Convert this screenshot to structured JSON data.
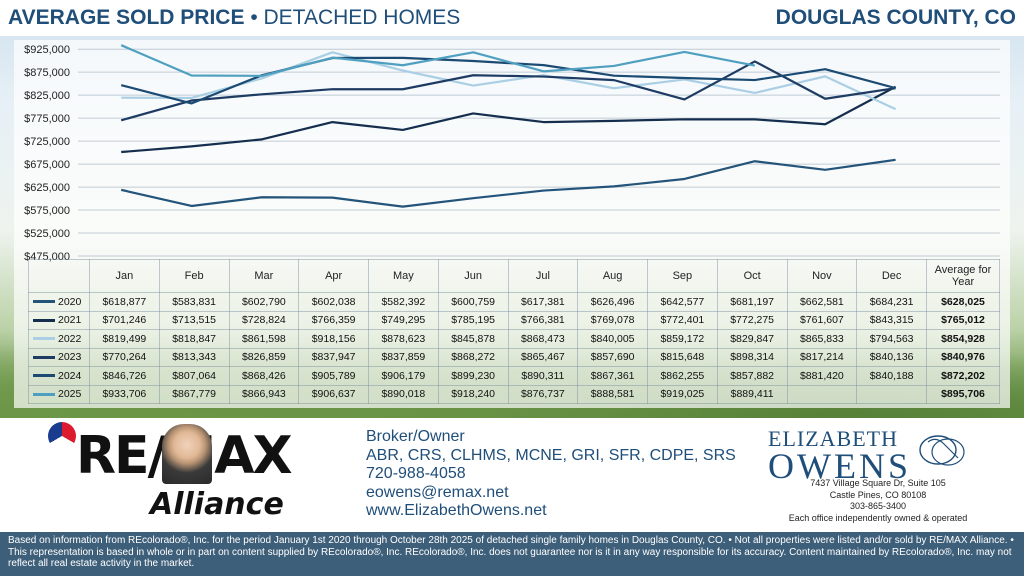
{
  "header": {
    "title_bold": "AVERAGE SOLD PRICE",
    "title_rest": " • DETACHED HOMES",
    "region": "DOUGLAS COUNTY, CO"
  },
  "colors": {
    "2020": "#24547a",
    "2021": "#152e4e",
    "2022": "#aacfe4",
    "2023": "#1e3b63",
    "2024": "#1b4a72",
    "2025": "#4fa0c0"
  },
  "chart_data": {
    "type": "line",
    "categories": [
      "Jan",
      "Feb",
      "Mar",
      "Apr",
      "May",
      "Jun",
      "Jul",
      "Aug",
      "Sep",
      "Oct",
      "Nov",
      "Dec"
    ],
    "ylim": [
      475000,
      945000
    ],
    "yticks": [
      "$475,000",
      "$525,000",
      "$575,000",
      "$625,000",
      "$675,000",
      "$725,000",
      "$775,000",
      "$825,000",
      "$875,000",
      "$925,000"
    ],
    "ytick_values": [
      475000,
      525000,
      575000,
      625000,
      675000,
      725000,
      775000,
      825000,
      875000,
      925000
    ],
    "avg_header": "Average for Year",
    "series": [
      {
        "name": "2020",
        "values": [
          618877,
          583831,
          602790,
          602038,
          582392,
          600759,
          617381,
          626496,
          642577,
          681197,
          662581,
          684231
        ],
        "display": [
          "$618,877",
          "$583,831",
          "$602,790",
          "$602,038",
          "$582,392",
          "$600,759",
          "$617,381",
          "$626,496",
          "$642,577",
          "$681,197",
          "$662,581",
          "$684,231"
        ],
        "average": "$628,025"
      },
      {
        "name": "2021",
        "values": [
          701246,
          713515,
          728824,
          766359,
          749295,
          785195,
          766381,
          769078,
          772401,
          772275,
          761607,
          843315
        ],
        "display": [
          "$701,246",
          "$713,515",
          "$728,824",
          "$766,359",
          "$749,295",
          "$785,195",
          "$766,381",
          "$769,078",
          "$772,401",
          "$772,275",
          "$761,607",
          "$843,315"
        ],
        "average": "$765,012"
      },
      {
        "name": "2022",
        "values": [
          819499,
          818847,
          861598,
          918156,
          878623,
          845878,
          868473,
          840005,
          859172,
          829847,
          865833,
          794563
        ],
        "display": [
          "$819,499",
          "$818,847",
          "$861,598",
          "$918,156",
          "$878,623",
          "$845,878",
          "$868,473",
          "$840,005",
          "$859,172",
          "$829,847",
          "$865,833",
          "$794,563"
        ],
        "average": "$854,928"
      },
      {
        "name": "2023",
        "values": [
          770264,
          813343,
          826859,
          837947,
          837859,
          868272,
          865467,
          857690,
          815648,
          898314,
          817214,
          840136
        ],
        "display": [
          "$770,264",
          "$813,343",
          "$826,859",
          "$837,947",
          "$837,859",
          "$868,272",
          "$865,467",
          "$857,690",
          "$815,648",
          "$898,314",
          "$817,214",
          "$840,136"
        ],
        "average": "$840,976"
      },
      {
        "name": "2024",
        "values": [
          846726,
          807064,
          868426,
          905789,
          906179,
          899230,
          890311,
          867361,
          862255,
          857882,
          881420,
          840188
        ],
        "display": [
          "$846,726",
          "$807,064",
          "$868,426",
          "$905,789",
          "$906,179",
          "$899,230",
          "$890,311",
          "$867,361",
          "$862,255",
          "$857,882",
          "$881,420",
          "$840,188"
        ],
        "average": "$872,202"
      },
      {
        "name": "2025",
        "values": [
          933706,
          867779,
          866943,
          906637,
          890018,
          918240,
          876737,
          888581,
          919025,
          889411,
          null,
          null
        ],
        "display": [
          "$933,706",
          "$867,779",
          "$866,943",
          "$906,637",
          "$890,018",
          "$918,240",
          "$876,737",
          "$888,581",
          "$919,025",
          "$889,411",
          "",
          ""
        ],
        "average": "$895,706"
      }
    ]
  },
  "logos": {
    "remax_text": "RE/MAX",
    "alliance_text": "Alliance",
    "brand_line1": "ELIZABETH",
    "brand_line2": "OWENS",
    "brand_monogram": "EO"
  },
  "contact": {
    "role": "Broker/Owner",
    "credentials": "ABR, CRS, CLHMS, MCNE, GRI, SFR, CDPE, SRS",
    "phone": "720-988-4058",
    "email": "eowens@remax.net",
    "website": "www.ElizabethOwens.net"
  },
  "office": {
    "address1": "7437 Village Square Dr, Suite 105",
    "address2": "Castle Pines, CO 80108",
    "phone": "303-865-3400",
    "note": "Each office independently owned & operated"
  },
  "disclaimer": "Based on information from REcolorado®, Inc. for the period January 1st 2020 through October 28th 2025 of detached single family homes in Douglas County, CO. • Not all properties were listed and/or sold by RE/MAX Alliance. • This representation is based in whole or in part on content supplied by REcolorado®, Inc. REcolorado®, Inc. does not guarantee nor is it in any way responsible for its accuracy. Content maintained by REcolorado®, Inc. may not reflect all real estate activity in the market."
}
